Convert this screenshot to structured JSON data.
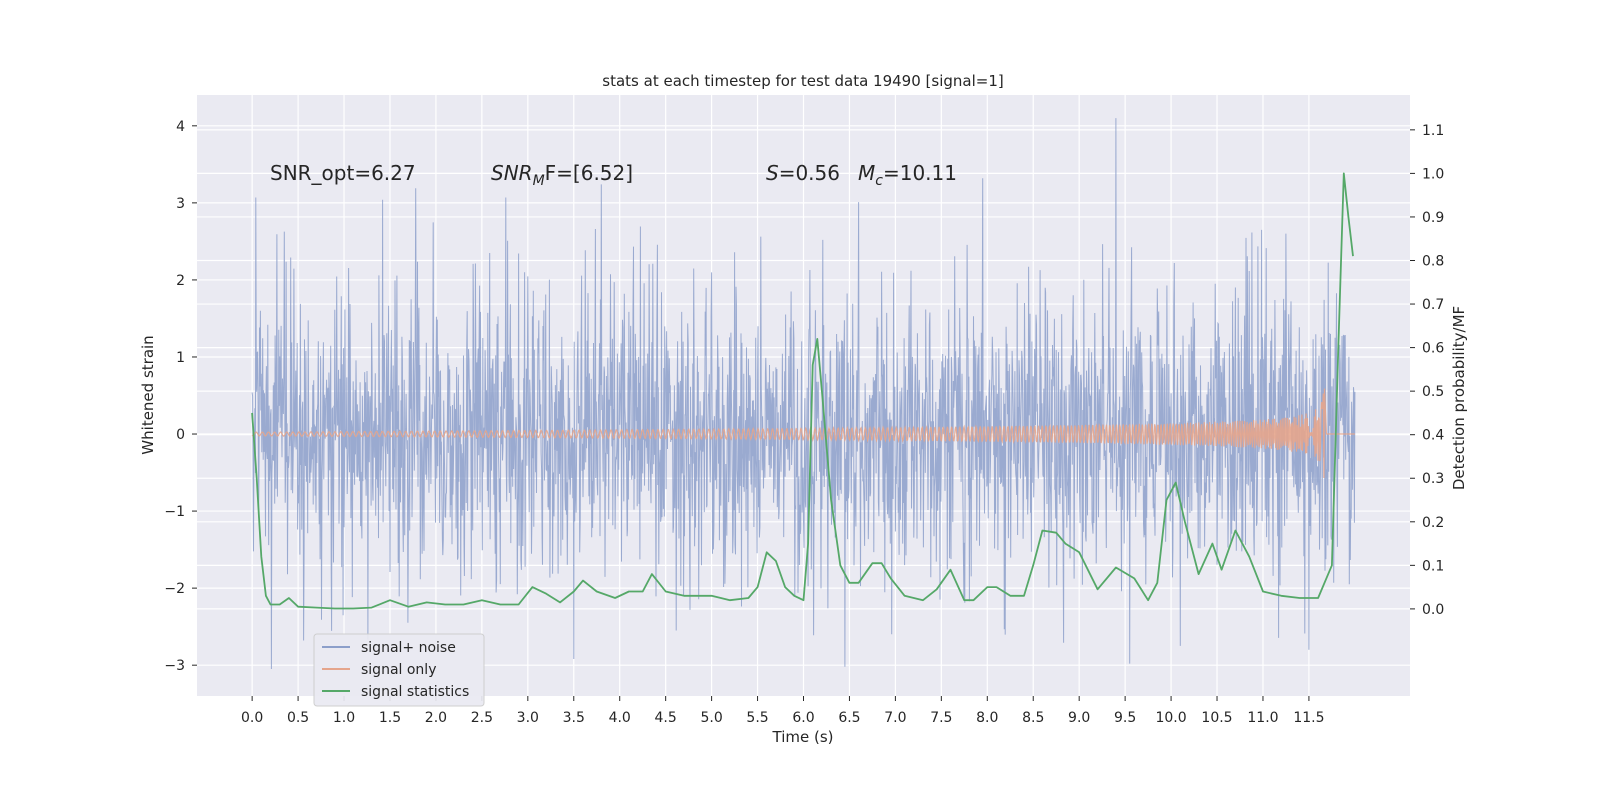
{
  "chart_data": {
    "type": "line",
    "title": "stats at each timestep for test data 19490 [signal=1]",
    "xlabel": "Time (s)",
    "ylabel": "Whitened strain",
    "ylabel_right": "Detection probability/MF",
    "xlim": [
      -0.6,
      12.6
    ],
    "ylim": [
      -3.4,
      4.4
    ],
    "ylim_right": [
      -0.2,
      1.18
    ],
    "x_ticks": [
      0.0,
      0.5,
      1.0,
      1.5,
      2.0,
      2.5,
      3.0,
      3.5,
      4.0,
      4.5,
      5.0,
      5.5,
      6.0,
      6.5,
      7.0,
      7.5,
      8.0,
      8.5,
      9.0,
      9.5,
      10.0,
      10.5,
      11.0,
      11.5
    ],
    "x_tick_labels": [
      "0.0",
      "0.5",
      "1.0",
      "1.5",
      "2.0",
      "2.5",
      "3.0",
      "3.5",
      "4.0",
      "4.5",
      "5.0",
      "5.5",
      "6.0",
      "6.5",
      "7.0",
      "7.5",
      "8.0",
      "8.5",
      "9.0",
      "9.5",
      "10.0",
      "10.5",
      "11.0",
      "11.5"
    ],
    "y_ticks": [
      -3,
      -2,
      -1,
      0,
      1,
      2,
      3,
      4
    ],
    "y_tick_labels": [
      "−3",
      "−2",
      "−1",
      "0",
      "1",
      "2",
      "3",
      "4"
    ],
    "y_right_ticks": [
      0.0,
      0.1,
      0.2,
      0.3,
      0.4,
      0.5,
      0.6,
      0.7,
      0.8,
      0.9,
      1.0,
      1.1
    ],
    "y_right_tick_labels": [
      "0.0",
      "0.1",
      "0.2",
      "0.3",
      "0.4",
      "0.5",
      "0.6",
      "0.7",
      "0.8",
      "0.9",
      "1.0",
      "1.1"
    ],
    "grid": true,
    "legend_position": "bottom-left",
    "annotations": [
      {
        "label": "SNR_opt=6.27"
      },
      {
        "label": "SNR",
        "sub": "M",
        "suffix": "F=[6.52]"
      },
      {
        "label": "S",
        "suffix": "=0.56"
      },
      {
        "label": "M",
        "sub": "c",
        "suffix": "=10.11"
      }
    ],
    "series": [
      {
        "name": "signal+ noise",
        "color": "#8c9fca",
        "t_start": 0.0,
        "t_end": 12.0,
        "envelope_sigma": 0.95,
        "peaks": [
          {
            "t": 0.04,
            "v": 3.07
          },
          {
            "t": 1.42,
            "v": 3.04
          },
          {
            "t": 1.78,
            "v": 3.19
          },
          {
            "t": 2.76,
            "v": 3.07
          },
          {
            "t": 3.8,
            "v": 3.24
          },
          {
            "t": 6.6,
            "v": 3.01
          },
          {
            "t": 7.95,
            "v": 3.32
          },
          {
            "t": 9.4,
            "v": 4.1
          },
          {
            "t": 0.21,
            "v": -3.05
          },
          {
            "t": 3.5,
            "v": -2.92
          },
          {
            "t": 6.45,
            "v": -3.02
          },
          {
            "t": 9.55,
            "v": -2.98
          },
          {
            "t": 10.1,
            "v": -2.75
          },
          {
            "t": 11.5,
            "v": -2.8
          }
        ]
      },
      {
        "name": "signal only",
        "color": "#e5a58c",
        "t_start": 0.0,
        "t_end": 11.67,
        "t_merge": 11.67,
        "amp_end": 0.72,
        "after_value": 0.0
      },
      {
        "name": "signal statistics",
        "color": "#55a868",
        "axis": "right",
        "x": [
          0.0,
          0.05,
          0.1,
          0.15,
          0.2,
          0.3,
          0.4,
          0.5,
          0.7,
          0.9,
          1.1,
          1.3,
          1.5,
          1.7,
          1.9,
          2.1,
          2.3,
          2.5,
          2.7,
          2.9,
          3.05,
          3.2,
          3.35,
          3.5,
          3.6,
          3.75,
          3.95,
          4.1,
          4.25,
          4.35,
          4.5,
          4.7,
          4.9,
          5.0,
          5.2,
          5.4,
          5.5,
          5.6,
          5.7,
          5.8,
          5.9,
          6.0,
          6.05,
          6.1,
          6.15,
          6.2,
          6.3,
          6.4,
          6.5,
          6.6,
          6.75,
          6.85,
          6.95,
          7.1,
          7.3,
          7.45,
          7.6,
          7.75,
          7.85,
          8.0,
          8.1,
          8.25,
          8.4,
          8.5,
          8.6,
          8.75,
          8.85,
          9.0,
          9.2,
          9.4,
          9.6,
          9.75,
          9.85,
          9.95,
          10.05,
          10.15,
          10.3,
          10.45,
          10.55,
          10.7,
          10.85,
          11.0,
          11.2,
          11.4,
          11.6,
          11.75,
          11.82,
          11.88,
          11.93,
          11.98
        ],
        "values": [
          0.45,
          0.3,
          0.12,
          0.03,
          0.01,
          0.01,
          0.025,
          0.005,
          0.003,
          0.001,
          0.001,
          0.003,
          0.02,
          0.005,
          0.015,
          0.01,
          0.01,
          0.02,
          0.01,
          0.01,
          0.05,
          0.035,
          0.015,
          0.04,
          0.065,
          0.04,
          0.025,
          0.04,
          0.04,
          0.08,
          0.04,
          0.03,
          0.03,
          0.03,
          0.02,
          0.025,
          0.05,
          0.13,
          0.11,
          0.05,
          0.03,
          0.02,
          0.15,
          0.56,
          0.62,
          0.5,
          0.25,
          0.1,
          0.06,
          0.06,
          0.105,
          0.105,
          0.07,
          0.03,
          0.02,
          0.045,
          0.09,
          0.02,
          0.02,
          0.05,
          0.05,
          0.03,
          0.03,
          0.1,
          0.18,
          0.175,
          0.15,
          0.13,
          0.045,
          0.095,
          0.07,
          0.02,
          0.06,
          0.25,
          0.29,
          0.2,
          0.08,
          0.15,
          0.09,
          0.18,
          0.12,
          0.04,
          0.03,
          0.025,
          0.025,
          0.1,
          0.6,
          1.0,
          0.9,
          0.81
        ]
      }
    ]
  }
}
